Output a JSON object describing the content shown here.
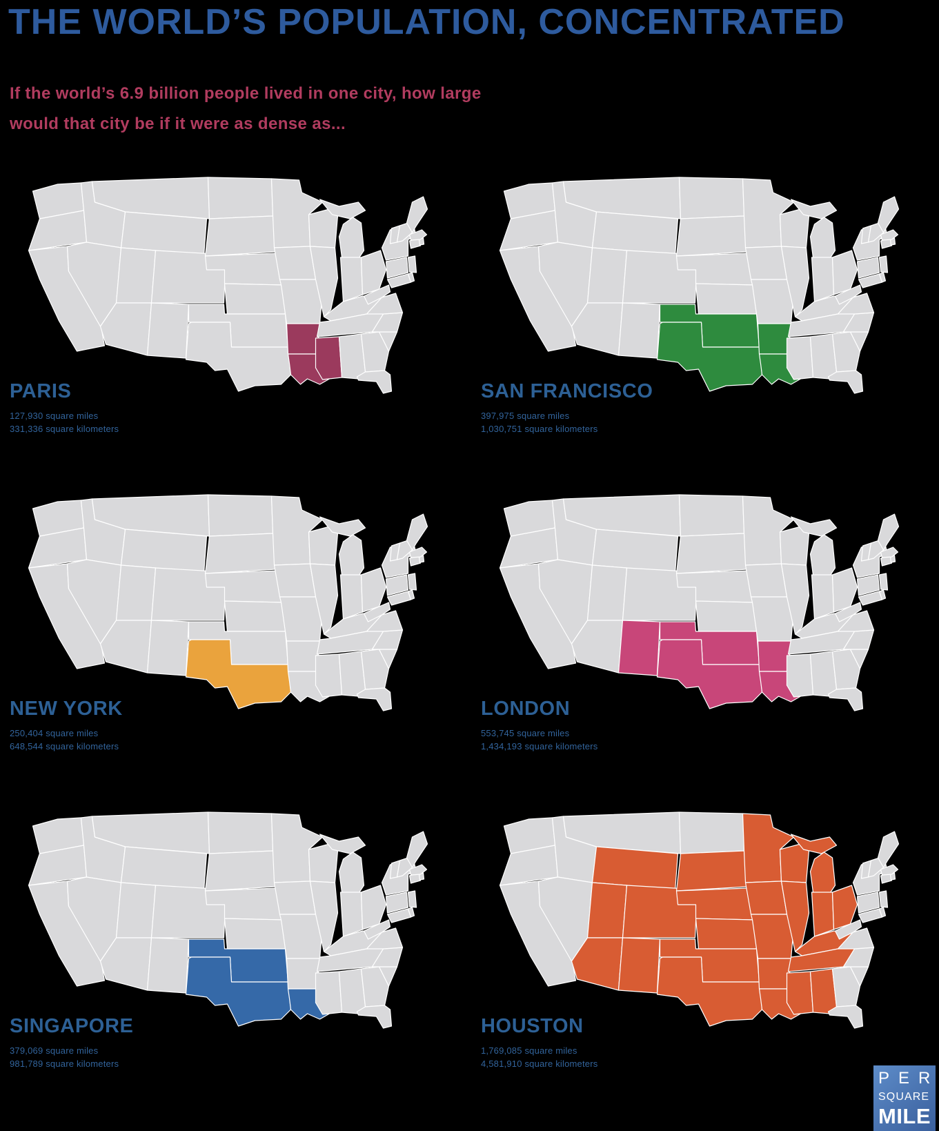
{
  "title": "THE WORLD’S POPULATION, CONCENTRATED",
  "subtitle_line1": "If the world’s 6.9 billion people lived in one city, how large",
  "subtitle_line2": "would that city be if it were as dense as...",
  "colors": {
    "background": "#000000",
    "title": "#2e5b9e",
    "subtitle": "#b13c5f",
    "city_label": "#2d6095",
    "stats_text": "#32649c",
    "logo_top": "#5d8cc9",
    "logo_bottom": "#3a5f9c"
  },
  "map": {
    "base_fill": "#d9d9db",
    "border": "#ffffff"
  },
  "panels": [
    {
      "id": "paris",
      "city": "PARIS",
      "miles": "127,930 square miles",
      "kilometers": "331,336 square kilometers",
      "color": "#9b3a5d",
      "highlighted_states": [
        "AR",
        "LA",
        "MS"
      ]
    },
    {
      "id": "san-francisco",
      "city": "SAN FRANCISCO",
      "miles": "397,975 square miles",
      "kilometers": "1,030,751 square kilometers",
      "color": "#2e8b3e",
      "highlighted_states": [
        "TX",
        "OK",
        "AR",
        "LA"
      ]
    },
    {
      "id": "new-york",
      "city": "NEW YORK",
      "miles": "250,404 square miles",
      "kilometers": "648,544 square kilometers",
      "color": "#eaa33d",
      "highlighted_states": [
        "TX"
      ]
    },
    {
      "id": "london",
      "city": "LONDON",
      "miles": "553,745 square miles",
      "kilometers": "1,434,193 square kilometers",
      "color": "#c84679",
      "highlighted_states": [
        "NM",
        "TX",
        "OK",
        "AR",
        "LA"
      ]
    },
    {
      "id": "singapore",
      "city": "SINGAPORE",
      "miles": "379,069 square miles",
      "kilometers": "981,789 square kilometers",
      "color": "#3569a8",
      "highlighted_states": [
        "TX",
        "OK",
        "LA"
      ]
    },
    {
      "id": "houston",
      "city": "HOUSTON",
      "miles": "1,769,085 square miles",
      "kilometers": "4,581,910 square kilometers",
      "color": "#d85c33",
      "highlighted_states": [
        "AZ",
        "UT",
        "WY",
        "CO",
        "NM",
        "SD",
        "NE",
        "KS",
        "OK",
        "TX",
        "MN",
        "IA",
        "MO",
        "AR",
        "LA",
        "WI",
        "IL",
        "MI",
        "IN",
        "OH",
        "KY",
        "TN",
        "MS",
        "AL"
      ]
    }
  ],
  "logo": {
    "line1": "PER",
    "line2": "SQUARE",
    "line3": "MILE"
  }
}
